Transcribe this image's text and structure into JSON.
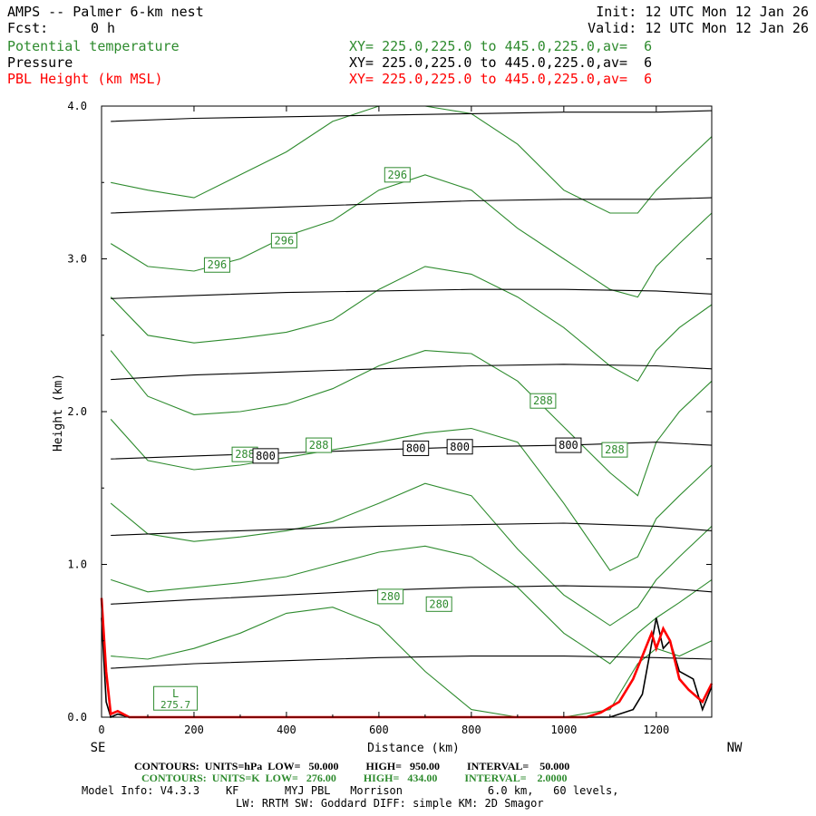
{
  "header": {
    "title": "AMPS -- Palmer 6-km nest",
    "fcst_label": "Fcst:",
    "fcst_value": "0 h",
    "init": "Init: 12 UTC Mon 12 Jan 26",
    "valid": "Valid: 12 UTC Mon 12 Jan 26",
    "fields": [
      {
        "name": "Potential temperature",
        "xy": "XY= 225.0,225.0 to 445.0,225.0,av=  6",
        "color": "#2e8b2e"
      },
      {
        "name": "Pressure",
        "xy": "XY= 225.0,225.0 to 445.0,225.0,av=  6",
        "color": "#000000"
      },
      {
        "name": "PBL Height (km MSL)",
        "xy": "XY= 225.0,225.0 to 445.0,225.0,av=  6",
        "color": "#ff0000"
      }
    ]
  },
  "colors": {
    "theta": "#2e8b2e",
    "pressure": "#000000",
    "pbl": "#ff0000",
    "terrain": "#000000"
  },
  "chart_data": {
    "type": "line",
    "xlabel": "Distance (km)",
    "ylabel": "Height (km)",
    "xlim": [
      0,
      1320
    ],
    "ylim": [
      0,
      4
    ],
    "x_ticks": [
      "0",
      "200",
      "400",
      "600",
      "800",
      "1000",
      "1200"
    ],
    "y_ticks": [
      "0.0",
      "1.0",
      "2.0",
      "3.0",
      "4.0"
    ],
    "x_end_labels": {
      "left": "SE",
      "right": "NW"
    },
    "grid": false,
    "pressure_levels_hPa": [
      {
        "value": 950,
        "y": [
          0.32,
          0.35,
          0.37,
          0.39,
          0.4,
          0.4,
          0.39,
          0.38
        ]
      },
      {
        "value": 900,
        "y": [
          0.74,
          0.77,
          0.8,
          0.83,
          0.85,
          0.86,
          0.85,
          0.82
        ]
      },
      {
        "value": 850,
        "y": [
          1.19,
          1.21,
          1.23,
          1.25,
          1.26,
          1.27,
          1.25,
          1.22
        ]
      },
      {
        "value": 800,
        "y": [
          1.69,
          1.71,
          1.73,
          1.75,
          1.77,
          1.78,
          1.8,
          1.78
        ]
      },
      {
        "value": 750,
        "y": [
          2.21,
          2.24,
          2.26,
          2.28,
          2.3,
          2.31,
          2.3,
          2.28
        ]
      },
      {
        "value": 700,
        "y": [
          2.74,
          2.76,
          2.78,
          2.79,
          2.8,
          2.8,
          2.79,
          2.77
        ]
      },
      {
        "value": 650,
        "y": [
          3.3,
          3.32,
          3.34,
          3.36,
          3.38,
          3.39,
          3.39,
          3.4
        ]
      },
      {
        "value": 600,
        "y": [
          3.9,
          3.92,
          3.93,
          3.94,
          3.95,
          3.96,
          3.96,
          3.97
        ]
      }
    ],
    "pressure_x": [
      20,
      200,
      400,
      600,
      800,
      1000,
      1200,
      1320
    ],
    "theta_x": [
      20,
      100,
      200,
      300,
      400,
      500,
      600,
      700,
      800,
      900,
      1000,
      1100,
      1160,
      1200,
      1250,
      1320
    ],
    "theta_isentropes_K": [
      {
        "y": [
          0.4,
          0.38,
          0.45,
          0.55,
          0.68,
          0.72,
          0.6,
          0.3,
          0.05,
          0.0,
          0.0,
          0.05,
          0.35,
          0.45,
          0.4,
          0.5
        ]
      },
      {
        "y": [
          0.9,
          0.82,
          0.85,
          0.88,
          0.92,
          1.0,
          1.08,
          1.12,
          1.05,
          0.85,
          0.55,
          0.35,
          0.55,
          0.65,
          0.75,
          0.9
        ]
      },
      {
        "y": [
          1.4,
          1.2,
          1.15,
          1.18,
          1.22,
          1.28,
          1.4,
          1.53,
          1.45,
          1.1,
          0.8,
          0.6,
          0.72,
          0.9,
          1.05,
          1.25
        ]
      },
      {
        "y": [
          1.95,
          1.68,
          1.62,
          1.65,
          1.7,
          1.75,
          1.8,
          1.86,
          1.89,
          1.8,
          1.4,
          0.96,
          1.05,
          1.3,
          1.45,
          1.65
        ]
      },
      {
        "y": [
          2.4,
          2.1,
          1.98,
          2.0,
          2.05,
          2.15,
          2.3,
          2.4,
          2.38,
          2.2,
          1.9,
          1.6,
          1.45,
          1.8,
          2.0,
          2.2
        ]
      },
      {
        "y": [
          2.75,
          2.5,
          2.45,
          2.48,
          2.52,
          2.6,
          2.8,
          2.95,
          2.9,
          2.75,
          2.55,
          2.3,
          2.2,
          2.4,
          2.55,
          2.7
        ]
      },
      {
        "y": [
          3.1,
          2.95,
          2.92,
          3.0,
          3.15,
          3.25,
          3.45,
          3.55,
          3.45,
          3.2,
          3.0,
          2.8,
          2.75,
          2.95,
          3.1,
          3.3
        ]
      },
      {
        "y": [
          3.5,
          3.45,
          3.4,
          3.55,
          3.7,
          3.9,
          4.0,
          4.0,
          3.95,
          3.75,
          3.45,
          3.3,
          3.3,
          3.45,
          3.6,
          3.8
        ]
      }
    ],
    "pbl_height_km": {
      "x": [
        0,
        10,
        20,
        35,
        60,
        100,
        1050,
        1080,
        1120,
        1150,
        1170,
        1190,
        1200,
        1215,
        1230,
        1250,
        1270,
        1300,
        1320
      ],
      "y": [
        0.78,
        0.3,
        0.02,
        0.04,
        0.0,
        0.0,
        0.0,
        0.03,
        0.1,
        0.25,
        0.4,
        0.55,
        0.45,
        0.58,
        0.5,
        0.25,
        0.18,
        0.1,
        0.22
      ]
    },
    "terrain_km": {
      "x": [
        0,
        10,
        20,
        35,
        60,
        100,
        1100,
        1150,
        1170,
        1185,
        1200,
        1215,
        1230,
        1250,
        1280,
        1300,
        1320
      ],
      "y": [
        0.65,
        0.1,
        0.0,
        0.02,
        0.0,
        0.0,
        0.0,
        0.05,
        0.15,
        0.4,
        0.65,
        0.45,
        0.5,
        0.3,
        0.25,
        0.05,
        0.2
      ]
    },
    "contour_labels": [
      {
        "text": "296",
        "x": 640,
        "y": 3.55,
        "color": "green"
      },
      {
        "text": "296",
        "x": 395,
        "y": 3.12,
        "color": "green"
      },
      {
        "text": "296",
        "x": 250,
        "y": 2.96,
        "color": "green"
      },
      {
        "text": "288",
        "x": 955,
        "y": 2.07,
        "color": "green"
      },
      {
        "text": "288",
        "x": 470,
        "y": 1.78,
        "color": "green"
      },
      {
        "text": "288",
        "x": 310,
        "y": 1.72,
        "color": "green"
      },
      {
        "text": "288",
        "x": 1110,
        "y": 1.75,
        "color": "green"
      },
      {
        "text": "280",
        "x": 625,
        "y": 0.79,
        "color": "green"
      },
      {
        "text": "280",
        "x": 730,
        "y": 0.74,
        "color": "green"
      },
      {
        "text": "800",
        "x": 355,
        "y": 1.71,
        "color": "black"
      },
      {
        "text": "800",
        "x": 680,
        "y": 1.76,
        "color": "black"
      },
      {
        "text": "800",
        "x": 775,
        "y": 1.77,
        "color": "black"
      },
      {
        "text": "800",
        "x": 1010,
        "y": 1.78,
        "color": "black"
      }
    ],
    "low_marker": {
      "letter": "L",
      "value": "275.7",
      "x": 160,
      "y": 0.07
    }
  },
  "footer": {
    "line1": "CONTOURS:  UNITS=hPa  LOW=   50.000          HIGH=   950.00          INTERVAL=    50.000",
    "line2": "CONTOURS:  UNITS=K  LOW=   276.00          HIGH=   434.00          INTERVAL=    2.0000",
    "line3": "Model Info: V4.3.3    KF       MYJ PBL   Morrison             6.0 km,   60 levels,",
    "line4": "LW: RRTM SW: Goddard DIFF: simple KM: 2D Smagor"
  }
}
